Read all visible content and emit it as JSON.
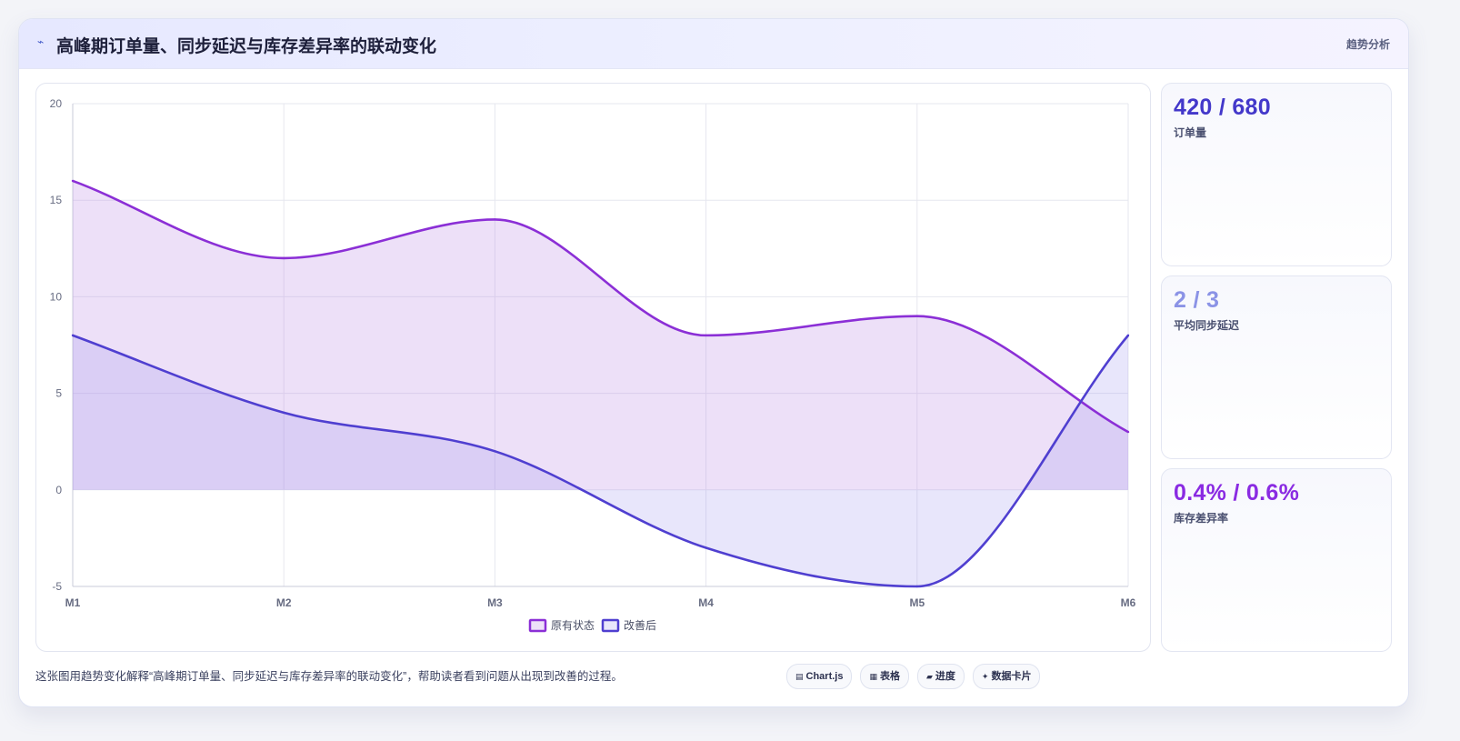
{
  "header": {
    "icon": "trend-line-icon",
    "title": "高峰期订单量、同步延迟与库存差异率的联动变化",
    "tag": "趋势分析"
  },
  "stats": [
    {
      "value": "420 / 680",
      "label": "订单量",
      "color": "#4338ca"
    },
    {
      "value": "2 / 3",
      "label": "平均同步延迟",
      "color": "#8b93e6"
    },
    {
      "value": "0.4% / 0.6%",
      "label": "库存差异率",
      "color": "#8a2be2"
    }
  ],
  "footer": {
    "text": "这张图用趋势变化解释“高峰期订单量、同步延迟与库存差异率的联动变化”，帮助读者看到问题从出现到改善的过程。"
  },
  "chips": [
    {
      "icon": "chart-icon",
      "glyph": "▤",
      "label": "Chart.js"
    },
    {
      "icon": "table-icon",
      "glyph": "▦",
      "label": "表格"
    },
    {
      "icon": "progress-icon",
      "glyph": "▰",
      "label": "进度"
    },
    {
      "icon": "data-card-icon",
      "glyph": "✦",
      "label": "数据卡片"
    }
  ],
  "chart_data": {
    "type": "area",
    "categories": [
      "M1",
      "M2",
      "M3",
      "M4",
      "M5",
      "M6"
    ],
    "ylim": [
      -5,
      20
    ],
    "yticks": [
      -5,
      0,
      5,
      10,
      15,
      20
    ],
    "grid": true,
    "legend_position": "bottom",
    "series": [
      {
        "name": "原有状态",
        "values": [
          16,
          12,
          14,
          8,
          9,
          3
        ],
        "color": "#8b2fd6",
        "fill": "rgba(190,140,230,0.27)"
      },
      {
        "name": "改善后",
        "values": [
          8,
          4,
          2,
          -3,
          -5,
          8
        ],
        "color": "#4f3fd0",
        "fill": "rgba(150,140,235,0.22)"
      }
    ]
  }
}
